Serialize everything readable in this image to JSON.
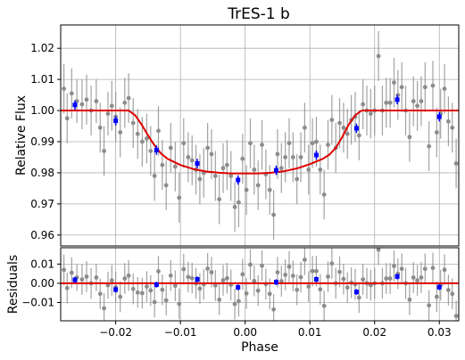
{
  "chart_data": [
    {
      "type": "scatter",
      "title": "TrES-1 b",
      "xlabel": "",
      "ylabel": "Relative Flux",
      "xlim": [
        -0.0285,
        0.033
      ],
      "ylim": [
        0.9565,
        1.0275
      ],
      "x_ticks": [
        -0.02,
        -0.01,
        0.0,
        0.01,
        0.02,
        0.03
      ],
      "y_ticks": [
        0.96,
        0.97,
        0.98,
        0.99,
        1.0,
        1.01,
        1.02
      ],
      "y_tick_labels": [
        "0.96",
        "0.97",
        "0.98",
        "0.99",
        "1.00",
        "1.01",
        "1.02"
      ],
      "grid": true,
      "series": [
        {
          "role": "observations",
          "color": "#8c8c8c",
          "points": [
            [
              -0.028,
              1.007,
              0.008
            ],
            [
              -0.0275,
              0.9975,
              0.008
            ],
            [
              -0.0268,
              1.0055,
              0.008
            ],
            [
              -0.026,
              1.003,
              0.007
            ],
            [
              -0.0252,
              1.002,
              0.008
            ],
            [
              -0.0245,
              1.0035,
              0.008
            ],
            [
              -0.0238,
              1.0,
              0.008
            ],
            [
              -0.023,
              1.003,
              0.007
            ],
            [
              -0.0224,
              0.9945,
              0.008
            ],
            [
              -0.0218,
              0.987,
              0.008
            ],
            [
              -0.0212,
              0.999,
              0.007
            ],
            [
              -0.0206,
              1.0015,
              0.008
            ],
            [
              -0.02,
              0.998,
              0.008
            ],
            [
              -0.0193,
              0.993,
              0.008
            ],
            [
              -0.0186,
              1.0025,
              0.008
            ],
            [
              -0.018,
              1.004,
              0.008
            ],
            [
              -0.0173,
              0.996,
              0.008
            ],
            [
              -0.0166,
              0.9925,
              0.008
            ],
            [
              -0.0159,
              0.99,
              0.008
            ],
            [
              -0.0152,
              0.991,
              0.008
            ],
            [
              -0.0146,
              0.987,
              0.008
            ],
            [
              -0.014,
              0.979,
              0.008
            ],
            [
              -0.0134,
              0.9935,
              0.008
            ],
            [
              -0.0128,
              0.9825,
              0.008
            ],
            [
              -0.0122,
              0.976,
              0.008
            ],
            [
              -0.0115,
              0.988,
              0.008
            ],
            [
              -0.0108,
              0.982,
              0.008
            ],
            [
              -0.0102,
              0.972,
              0.008
            ],
            [
              -0.0095,
              0.9895,
              0.008
            ],
            [
              -0.0088,
              0.985,
              0.008
            ],
            [
              -0.0082,
              0.984,
              0.008
            ],
            [
              -0.0076,
              0.981,
              0.008
            ],
            [
              -0.007,
              0.978,
              0.008
            ],
            [
              -0.0064,
              0.98,
              0.008
            ],
            [
              -0.0058,
              0.988,
              0.008
            ],
            [
              -0.0052,
              0.986,
              0.008
            ],
            [
              -0.0046,
              0.979,
              0.008
            ],
            [
              -0.004,
              0.9715,
              0.008
            ],
            [
              -0.0034,
              0.9815,
              0.008
            ],
            [
              -0.0028,
              0.9825,
              0.008
            ],
            [
              -0.0022,
              0.979,
              0.008
            ],
            [
              -0.0016,
              0.969,
              0.008
            ],
            [
              -0.001,
              0.9705,
              0.008
            ],
            [
              -0.0004,
              0.9845,
              0.008
            ],
            [
              0.0002,
              0.9745,
              0.008
            ],
            [
              0.0008,
              0.9895,
              0.008
            ],
            [
              0.0014,
              0.981,
              0.008
            ],
            [
              0.002,
              0.976,
              0.008
            ],
            [
              0.0026,
              0.989,
              0.008
            ],
            [
              0.0032,
              0.9795,
              0.008
            ],
            [
              0.0038,
              0.9745,
              0.008
            ],
            [
              0.0044,
              0.9665,
              0.008
            ],
            [
              0.005,
              0.986,
              0.008
            ],
            [
              0.0056,
              0.9815,
              0.008
            ],
            [
              0.0062,
              0.985,
              0.008
            ],
            [
              0.0068,
              0.9895,
              0.008
            ],
            [
              0.0074,
              0.985,
              0.008
            ],
            [
              0.008,
              0.978,
              0.008
            ],
            [
              0.0086,
              0.985,
              0.008
            ],
            [
              0.0092,
              0.9945,
              0.008
            ],
            [
              0.0098,
              0.981,
              0.008
            ],
            [
              0.0104,
              0.9895,
              0.008
            ],
            [
              0.011,
              0.99,
              0.008
            ],
            [
              0.0116,
              0.981,
              0.008
            ],
            [
              0.0122,
              0.973,
              0.008
            ],
            [
              0.0128,
              0.989,
              0.008
            ],
            [
              0.0134,
              0.997,
              0.008
            ],
            [
              0.014,
              0.988,
              0.008
            ],
            [
              0.0146,
              0.996,
              0.008
            ],
            [
              0.0152,
              0.9945,
              0.008
            ],
            [
              0.0158,
              0.9925,
              0.008
            ],
            [
              0.0164,
              0.997,
              0.008
            ],
            [
              0.017,
              0.998,
              0.008
            ],
            [
              0.0176,
              0.992,
              0.008
            ],
            [
              0.0182,
              1.002,
              0.008
            ],
            [
              0.0188,
              1.0,
              0.008
            ],
            [
              0.0194,
              0.999,
              0.008
            ],
            [
              0.02,
              1.0,
              0.008
            ],
            [
              0.0206,
              1.0175,
              0.008
            ],
            [
              0.0212,
              1.0,
              0.008
            ],
            [
              0.0218,
              1.0025,
              0.008
            ],
            [
              0.0224,
              1.0025,
              0.008
            ],
            [
              0.023,
              1.009,
              0.008
            ],
            [
              0.0236,
              1.005,
              0.008
            ],
            [
              0.0242,
              1.0075,
              0.008
            ],
            [
              0.0248,
              1.0,
              0.008
            ],
            [
              0.0254,
              0.9915,
              0.008
            ],
            [
              0.026,
              1.003,
              0.008
            ],
            [
              0.0266,
              1.0015,
              0.008
            ],
            [
              0.0272,
              1.003,
              0.008
            ],
            [
              0.0278,
              1.0075,
              0.008
            ],
            [
              0.0284,
              0.9885,
              0.008
            ],
            [
              0.029,
              1.008,
              0.008
            ],
            [
              0.0296,
              0.993,
              0.008
            ],
            [
              0.0302,
              0.999,
              0.008
            ],
            [
              0.0308,
              1.007,
              0.008
            ],
            [
              0.0314,
              0.9965,
              0.008
            ],
            [
              0.032,
              0.9945,
              0.008
            ],
            [
              0.0326,
              0.983,
              0.008
            ]
          ]
        },
        {
          "role": "binned",
          "color": "#0000ff",
          "points": [
            [
              -0.0263,
              1.0018,
              0.0015
            ],
            [
              -0.02,
              0.9967,
              0.0015
            ],
            [
              -0.0137,
              0.9873,
              0.0015
            ],
            [
              -0.0074,
              0.983,
              0.0015
            ],
            [
              -0.0011,
              0.9777,
              0.0015
            ],
            [
              0.0048,
              0.9808,
              0.0015
            ],
            [
              0.011,
              0.9857,
              0.0015
            ],
            [
              0.0172,
              0.9943,
              0.0015
            ],
            [
              0.0235,
              1.0035,
              0.0015
            ],
            [
              0.03,
              0.998,
              0.0015
            ]
          ]
        },
        {
          "role": "model",
          "color": "#e00000",
          "type": "line",
          "x": [
            -0.0285,
            -0.018,
            -0.017,
            -0.016,
            -0.015,
            -0.014,
            -0.013,
            -0.012,
            -0.01,
            -0.008,
            -0.006,
            -0.004,
            -0.002,
            0.0,
            0.002,
            0.004,
            0.006,
            0.008,
            0.01,
            0.012,
            0.013,
            0.014,
            0.015,
            0.016,
            0.017,
            0.018,
            0.019,
            0.033
          ],
          "y": [
            1.0,
            1.0,
            0.9985,
            0.9955,
            0.992,
            0.9888,
            0.9862,
            0.9845,
            0.9825,
            0.9812,
            0.9804,
            0.98,
            0.9798,
            0.9798,
            0.9798,
            0.98,
            0.9805,
            0.9814,
            0.9828,
            0.9845,
            0.9858,
            0.988,
            0.9915,
            0.9955,
            0.9985,
            1.0,
            1.0,
            1.0
          ]
        }
      ]
    },
    {
      "type": "scatter",
      "title": "",
      "xlabel": "Phase",
      "ylabel": "Residuals",
      "xlim": [
        -0.0285,
        0.033
      ],
      "ylim": [
        -0.0195,
        0.0185
      ],
      "x_ticks": [
        -0.02,
        -0.01,
        0.0,
        0.01,
        0.02,
        0.03
      ],
      "x_tick_labels": [
        "−0.02",
        "−0.01",
        "0.00",
        "0.01",
        "0.02",
        "0.03"
      ],
      "y_ticks": [
        -0.01,
        0.0,
        0.01
      ],
      "y_tick_labels": [
        "−0.01",
        "0.00",
        "0.01"
      ],
      "grid": true,
      "zero_line_color": "#e00000"
    }
  ]
}
